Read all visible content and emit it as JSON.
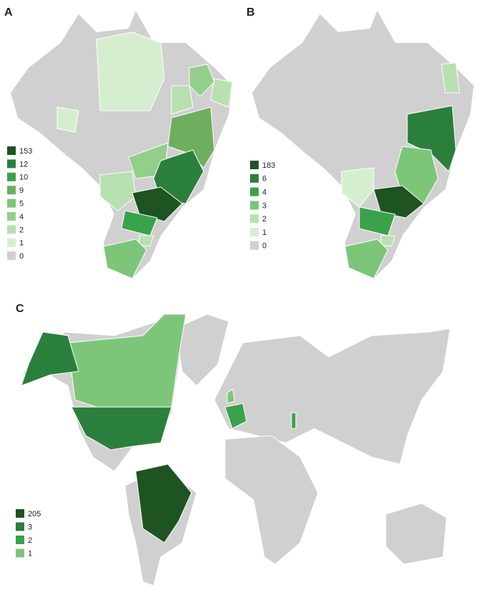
{
  "panels": [
    {
      "label": "A",
      "legend": [
        {
          "value": 153,
          "color": "#1e5322"
        },
        {
          "value": 12,
          "color": "#2b7f3c"
        },
        {
          "value": 10,
          "color": "#3aa24a"
        },
        {
          "value": 9,
          "color": "#6fae5e"
        },
        {
          "value": 5,
          "color": "#7dc679"
        },
        {
          "value": 4,
          "color": "#93cf8a"
        },
        {
          "value": 2,
          "color": "#b8e0b0"
        },
        {
          "value": 1,
          "color": "#d6eed0"
        },
        {
          "value": 0,
          "color": "#d0d0d0"
        }
      ]
    },
    {
      "label": "B",
      "legend": [
        {
          "value": 183,
          "color": "#1e5322"
        },
        {
          "value": 6,
          "color": "#2b7f3c"
        },
        {
          "value": 4,
          "color": "#3aa24a"
        },
        {
          "value": 3,
          "color": "#7dc679"
        },
        {
          "value": 2,
          "color": "#b8e0b0"
        },
        {
          "value": 1,
          "color": "#d6eed0"
        },
        {
          "value": 0,
          "color": "#d0d0d0"
        }
      ]
    },
    {
      "label": "C",
      "legend": [
        {
          "value": 205,
          "color": "#1e5322"
        },
        {
          "value": 3,
          "color": "#2b7f3c"
        },
        {
          "value": 2,
          "color": "#3aa24a"
        },
        {
          "value": 1,
          "color": "#7dc679"
        }
      ]
    }
  ]
}
